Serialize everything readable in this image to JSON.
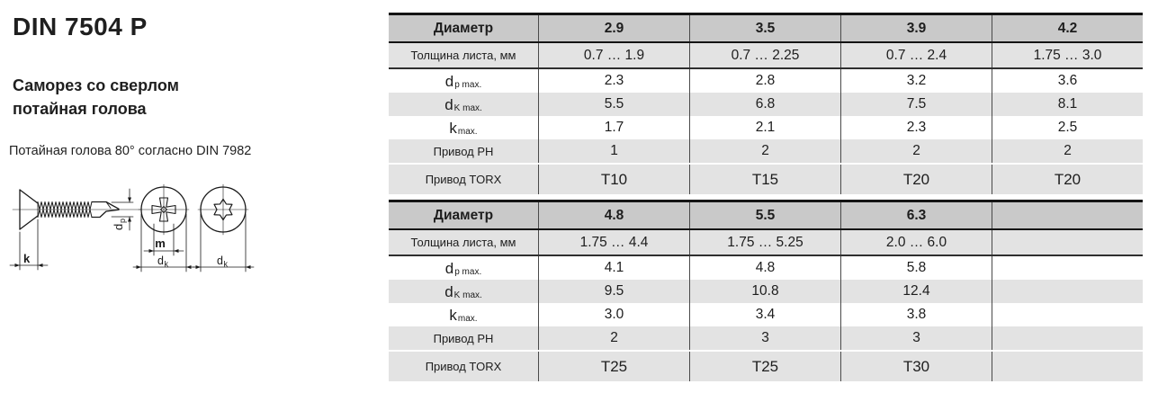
{
  "left": {
    "title": "DIN 7504 P",
    "subtitle_line1": "Саморез со сверлом",
    "subtitle_line2": "потайная голова",
    "note": "Потайная голова 80° согласно DIN 7982"
  },
  "drawing": {
    "labels": {
      "head_height": "k",
      "recess_width": "m",
      "d_main": "d",
      "sub_k": "k",
      "sub_p": "p"
    }
  },
  "colors": {
    "header_bg": "#c9c9c9",
    "stripe_bg": "#e3e3e3",
    "rule": "#141414",
    "divider": "#4a4a4a"
  },
  "tables": [
    {
      "name": "diameters-2.9-4.2",
      "header": [
        "Диаметр",
        "2.9",
        "3.5",
        "3.9",
        "4.2"
      ],
      "rows": [
        {
          "key": "sheet-thickness",
          "label": "Толщина листа, мм",
          "values": [
            "0.7 … 1.9",
            "0.7 … 2.25",
            "0.7 … 2.4",
            "1.75 … 3.0"
          ]
        },
        {
          "key": "dp-max",
          "label_main": "d",
          "label_sub": "p max.",
          "values": [
            "2.3",
            "2.8",
            "3.2",
            "3.6"
          ]
        },
        {
          "key": "dk-max",
          "label_main": "d",
          "label_sub": "K max.",
          "values": [
            "5.5",
            "6.8",
            "7.5",
            "8.1"
          ]
        },
        {
          "key": "k-max",
          "label_main": "k",
          "label_sub": "max.",
          "values": [
            "1.7",
            "2.1",
            "2.3",
            "2.5"
          ]
        },
        {
          "key": "drive-ph",
          "label": "Привод PH",
          "values": [
            "1",
            "2",
            "2",
            "2"
          ]
        },
        {
          "key": "drive-torx",
          "label": "Привод TORX",
          "values": [
            "T10",
            "T15",
            "T20",
            "T20"
          ]
        }
      ]
    },
    {
      "name": "diameters-4.8-6.3",
      "header": [
        "Диаметр",
        "4.8",
        "5.5",
        "6.3",
        ""
      ],
      "rows": [
        {
          "key": "sheet-thickness",
          "label": "Толщина листа, мм",
          "values": [
            "1.75 … 4.4",
            "1.75 … 5.25",
            "2.0 … 6.0",
            ""
          ]
        },
        {
          "key": "dp-max",
          "label_main": "d",
          "label_sub": "p max.",
          "values": [
            "4.1",
            "4.8",
            "5.8",
            ""
          ]
        },
        {
          "key": "dk-max",
          "label_main": "d",
          "label_sub": "K max.",
          "values": [
            "9.5",
            "10.8",
            "12.4",
            ""
          ]
        },
        {
          "key": "k-max",
          "label_main": "k",
          "label_sub": "max.",
          "values": [
            "3.0",
            "3.4",
            "3.8",
            ""
          ]
        },
        {
          "key": "drive-ph",
          "label": "Привод PH",
          "values": [
            "2",
            "3",
            "3",
            ""
          ]
        },
        {
          "key": "drive-torx",
          "label": "Привод TORX",
          "values": [
            "T25",
            "T25",
            "T30",
            ""
          ]
        }
      ]
    }
  ]
}
